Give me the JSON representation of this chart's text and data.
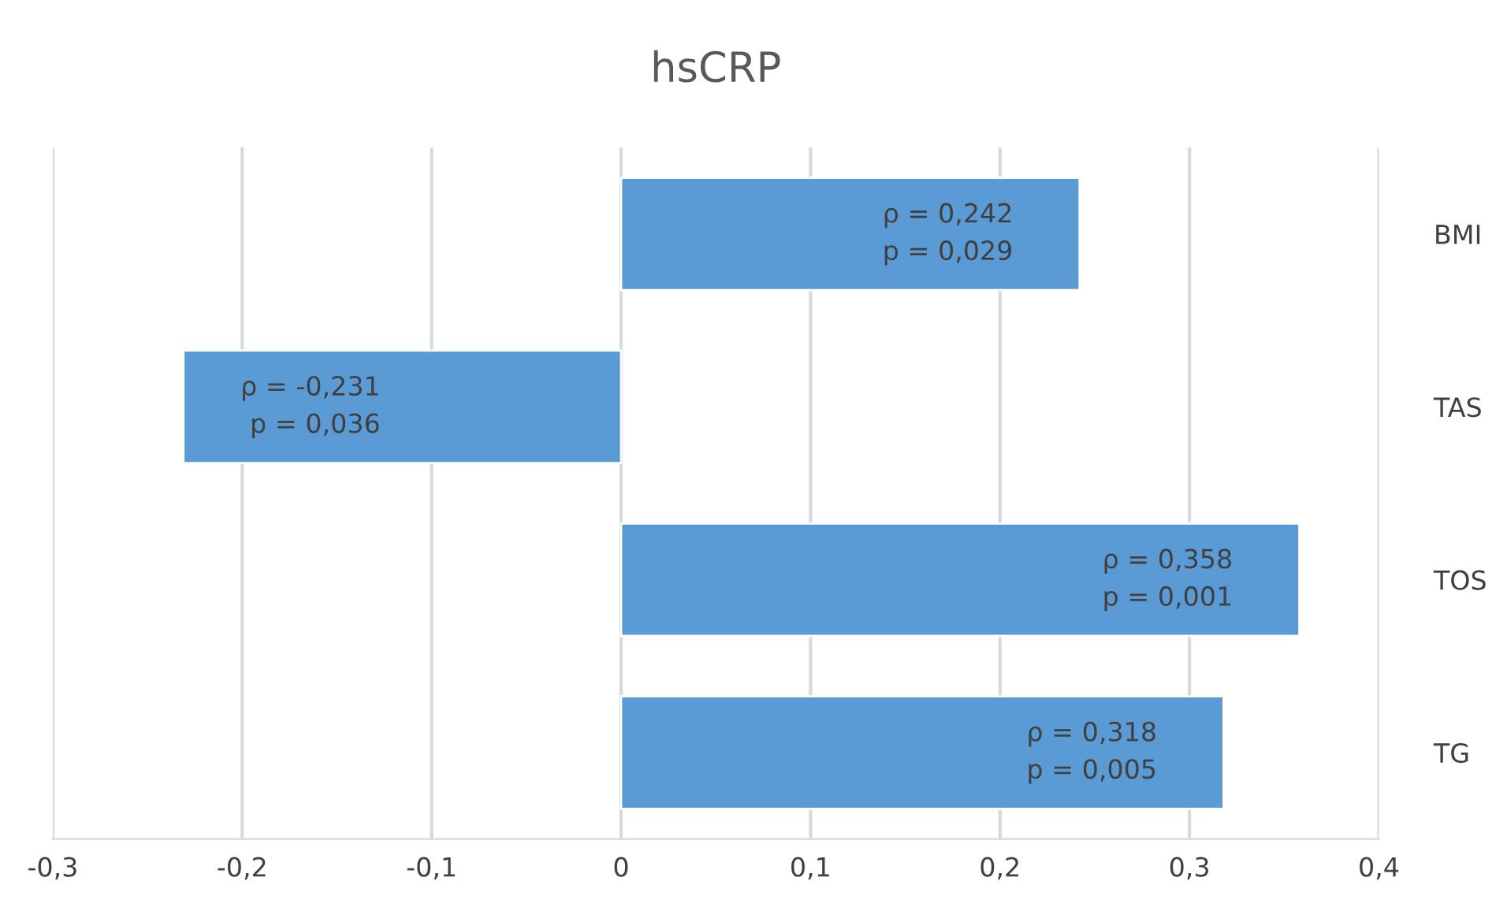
{
  "chart_data": {
    "type": "bar",
    "orientation": "horizontal",
    "title": "hsCRP",
    "categories": [
      "BMI",
      "TAS",
      "TOS",
      "TG"
    ],
    "values": [
      0.242,
      -0.231,
      0.358,
      0.318
    ],
    "value_labels": [
      "ρ = 0,242\np = 0,029",
      "ρ = -0,231\np = 0,036",
      "ρ = 0,358\np = 0,001",
      "ρ = 0,318\np = 0,005"
    ],
    "color": "#5b9bd5",
    "xlim": [
      -0.3,
      0.4
    ],
    "xticks": [
      {
        "value": -0.3,
        "label": "-0,3"
      },
      {
        "value": -0.2,
        "label": "-0,2"
      },
      {
        "value": -0.1,
        "label": "-0,1"
      },
      {
        "value": 0,
        "label": "0"
      },
      {
        "value": 0.1,
        "label": "0,1"
      },
      {
        "value": 0.2,
        "label": "0,2"
      },
      {
        "value": 0.3,
        "label": "0,3"
      },
      {
        "value": 0.4,
        "label": "0,4"
      }
    ],
    "grid": "x",
    "legend": false
  }
}
